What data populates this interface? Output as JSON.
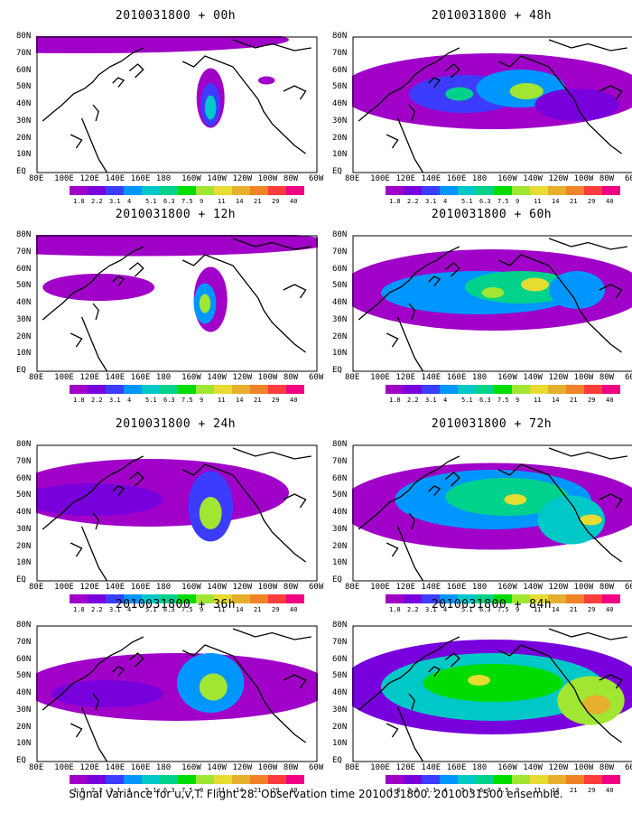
{
  "caption": "Signal Variance for u,v,T. Flight 28. Observation time 2010031800. 2010031500 ensemble.",
  "lat_labels": [
    "80N",
    "70N",
    "60N",
    "50N",
    "40N",
    "30N",
    "20N",
    "10N",
    "EQ"
  ],
  "lon_labels": [
    "80E",
    "100E",
    "120E",
    "140E",
    "160E",
    "180",
    "160W",
    "140W",
    "120W",
    "100W",
    "80W",
    "60W"
  ],
  "colorbar_labels": [
    "1.8",
    "2.2",
    "3.1",
    "4",
    "5.1",
    "6.3",
    "7.5",
    "9",
    "11",
    "14",
    "21",
    "29",
    "40"
  ],
  "colorbar_labels_alt": [
    "1.6",
    "2.2",
    "3.1",
    "4",
    "5.1",
    "6.3",
    "7.5",
    "9",
    "11",
    "14",
    "21",
    "29",
    "40"
  ],
  "colorbar_colors": [
    "#a000c8",
    "#7800dc",
    "#3c3cff",
    "#0096ff",
    "#00c8c8",
    "#00d28c",
    "#00dc00",
    "#a0e632",
    "#e6dc32",
    "#e6af2d",
    "#f08228",
    "#fa3c3c",
    "#f00082"
  ],
  "panels": [
    {
      "title": "2010031800 + 00h"
    },
    {
      "title": "2010031800 + 48h"
    },
    {
      "title": "2010031800 + 12h"
    },
    {
      "title": "2010031800 + 60h"
    },
    {
      "title": "2010031800 + 24h"
    },
    {
      "title": "2010031800 + 72h"
    },
    {
      "title": "2010031800 + 36h"
    },
    {
      "title": "2010031800 + 84h"
    }
  ]
}
